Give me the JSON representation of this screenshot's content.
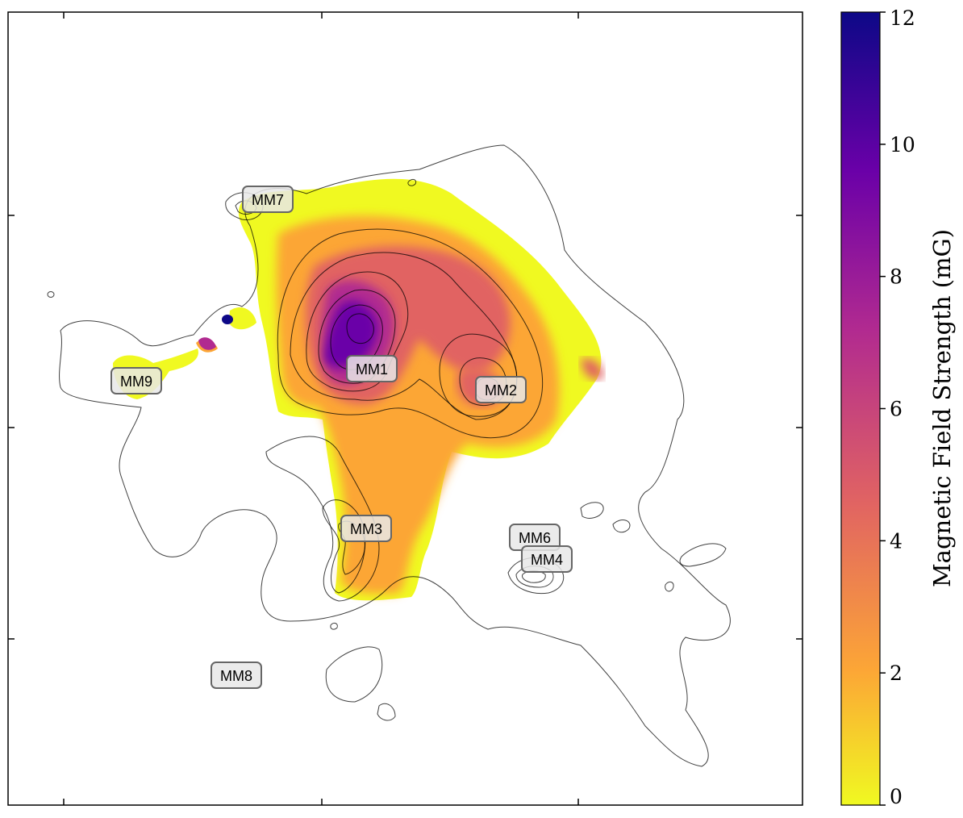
{
  "chart_data": {
    "type": "heatmap",
    "title": "",
    "colorbar": {
      "label": "Magnetic Field Strength (mG)",
      "colormap": "plasma_r",
      "range": [
        0,
        12
      ],
      "ticks": [
        "0",
        "2",
        "4",
        "6",
        "8",
        "10",
        "12"
      ],
      "colors": [
        "#f0f921",
        "#fca636",
        "#e16462",
        "#b12a90",
        "#6a00a8",
        "#0d0887"
      ]
    },
    "axes": {
      "tick_labels_visible": false,
      "grid": false
    },
    "overlay": "black dust-continuum contours",
    "sources": [
      {
        "name": "MM1"
      },
      {
        "name": "MM2"
      },
      {
        "name": "MM3"
      },
      {
        "name": "MM4"
      },
      {
        "name": "MM6"
      },
      {
        "name": "MM7"
      },
      {
        "name": "MM8"
      },
      {
        "name": "MM9"
      }
    ]
  }
}
